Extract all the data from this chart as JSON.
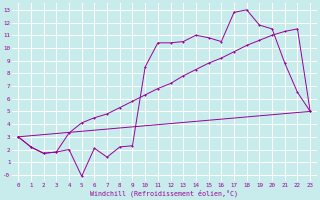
{
  "background_color": "#c8ecec",
  "grid_color": "#ffffff",
  "line_color": "#990099",
  "xlabel": "Windchill (Refroidissement éolien,°C)",
  "xlim": [
    -0.5,
    23.5
  ],
  "ylim": [
    -0.5,
    13.5
  ],
  "xticks": [
    0,
    1,
    2,
    3,
    4,
    5,
    6,
    7,
    8,
    9,
    10,
    11,
    12,
    13,
    14,
    15,
    16,
    17,
    18,
    19,
    20,
    21,
    22,
    23
  ],
  "yticks": [
    0,
    1,
    2,
    3,
    4,
    5,
    6,
    7,
    8,
    9,
    10,
    11,
    12,
    13
  ],
  "ytick_labels": [
    "-0",
    "1",
    "2",
    "3",
    "4",
    "5",
    "6",
    "7",
    "8",
    "9",
    "10",
    "11",
    "12",
    "13"
  ],
  "line1_x": [
    0,
    1,
    2,
    3,
    4,
    5,
    6,
    7,
    8,
    9,
    10,
    11,
    12,
    13,
    14,
    15,
    16,
    17,
    18,
    19,
    20,
    21,
    22,
    23
  ],
  "line1_y": [
    3.0,
    2.2,
    1.7,
    1.8,
    2.0,
    -0.1,
    2.1,
    1.4,
    2.2,
    2.3,
    8.5,
    10.4,
    10.4,
    10.5,
    11.0,
    10.8,
    10.5,
    12.8,
    13.0,
    11.8,
    11.5,
    8.8,
    6.5,
    5.0
  ],
  "line2_x": [
    0,
    1,
    2,
    3,
    4,
    5,
    6,
    7,
    8,
    9,
    10,
    11,
    12,
    13,
    14,
    15,
    16,
    17,
    18,
    19,
    20,
    21,
    22,
    23
  ],
  "line2_y": [
    3.0,
    2.2,
    1.7,
    1.8,
    3.3,
    4.1,
    4.5,
    4.8,
    5.3,
    5.8,
    6.3,
    6.8,
    7.2,
    7.8,
    8.3,
    8.8,
    9.2,
    9.7,
    10.2,
    10.6,
    11.0,
    11.3,
    11.5,
    5.0
  ],
  "line3_x": [
    0,
    23
  ],
  "line3_y": [
    3.0,
    5.0
  ]
}
